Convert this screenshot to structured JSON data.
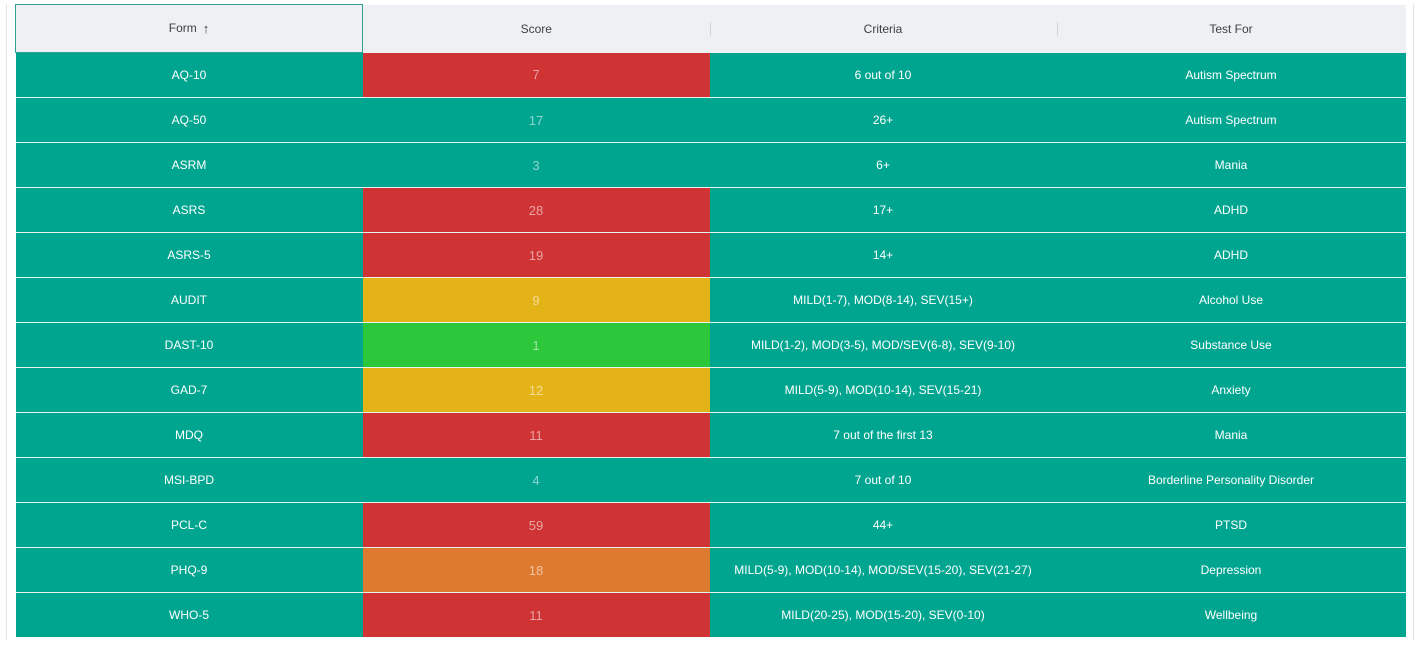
{
  "table": {
    "columns": [
      {
        "label": "Form",
        "sort": "ascending"
      },
      {
        "label": "Score"
      },
      {
        "label": "Criteria"
      },
      {
        "label": "Test For"
      }
    ],
    "sort_icon": "arrow-up-icon",
    "colors": {
      "row_bg": "#00a590",
      "header_bg": "#eef0f3",
      "red": "#cf3333",
      "yellow": "#e4b317",
      "green": "#2cc73a",
      "orange": "#dd7a2f"
    },
    "rows": [
      {
        "form": "AQ-10",
        "score": "7",
        "score_color": "red",
        "criteria": "6 out of 10",
        "test_for": "Autism Spectrum"
      },
      {
        "form": "AQ-50",
        "score": "17",
        "score_color": "none",
        "criteria": "26+",
        "test_for": "Autism Spectrum"
      },
      {
        "form": "ASRM",
        "score": "3",
        "score_color": "none",
        "criteria": "6+",
        "test_for": "Mania"
      },
      {
        "form": "ASRS",
        "score": "28",
        "score_color": "red",
        "criteria": "17+",
        "test_for": "ADHD"
      },
      {
        "form": "ASRS-5",
        "score": "19",
        "score_color": "red",
        "criteria": "14+",
        "test_for": "ADHD"
      },
      {
        "form": "AUDIT",
        "score": "9",
        "score_color": "yellow",
        "criteria": "MILD(1-7), MOD(8-14), SEV(15+)",
        "test_for": "Alcohol Use"
      },
      {
        "form": "DAST-10",
        "score": "1",
        "score_color": "green",
        "criteria": "MILD(1-2), MOD(3-5), MOD/SEV(6-8), SEV(9-10)",
        "test_for": "Substance Use"
      },
      {
        "form": "GAD-7",
        "score": "12",
        "score_color": "yellow",
        "criteria": "MILD(5-9), MOD(10-14), SEV(15-21)",
        "test_for": "Anxiety"
      },
      {
        "form": "MDQ",
        "score": "11",
        "score_color": "red",
        "criteria": "7 out of the first 13",
        "test_for": "Mania"
      },
      {
        "form": "MSI-BPD",
        "score": "4",
        "score_color": "none",
        "criteria": "7 out of 10",
        "test_for": "Borderline Personality Disorder"
      },
      {
        "form": "PCL-C",
        "score": "59",
        "score_color": "red",
        "criteria": "44+",
        "test_for": "PTSD"
      },
      {
        "form": "PHQ-9",
        "score": "18",
        "score_color": "orange",
        "criteria": "MILD(5-9), MOD(10-14), MOD/SEV(15-20), SEV(21-27)",
        "test_for": "Depression"
      },
      {
        "form": "WHO-5",
        "score": "11",
        "score_color": "red",
        "criteria": "MILD(20-25), MOD(15-20), SEV(0-10)",
        "test_for": "Wellbeing"
      }
    ]
  }
}
